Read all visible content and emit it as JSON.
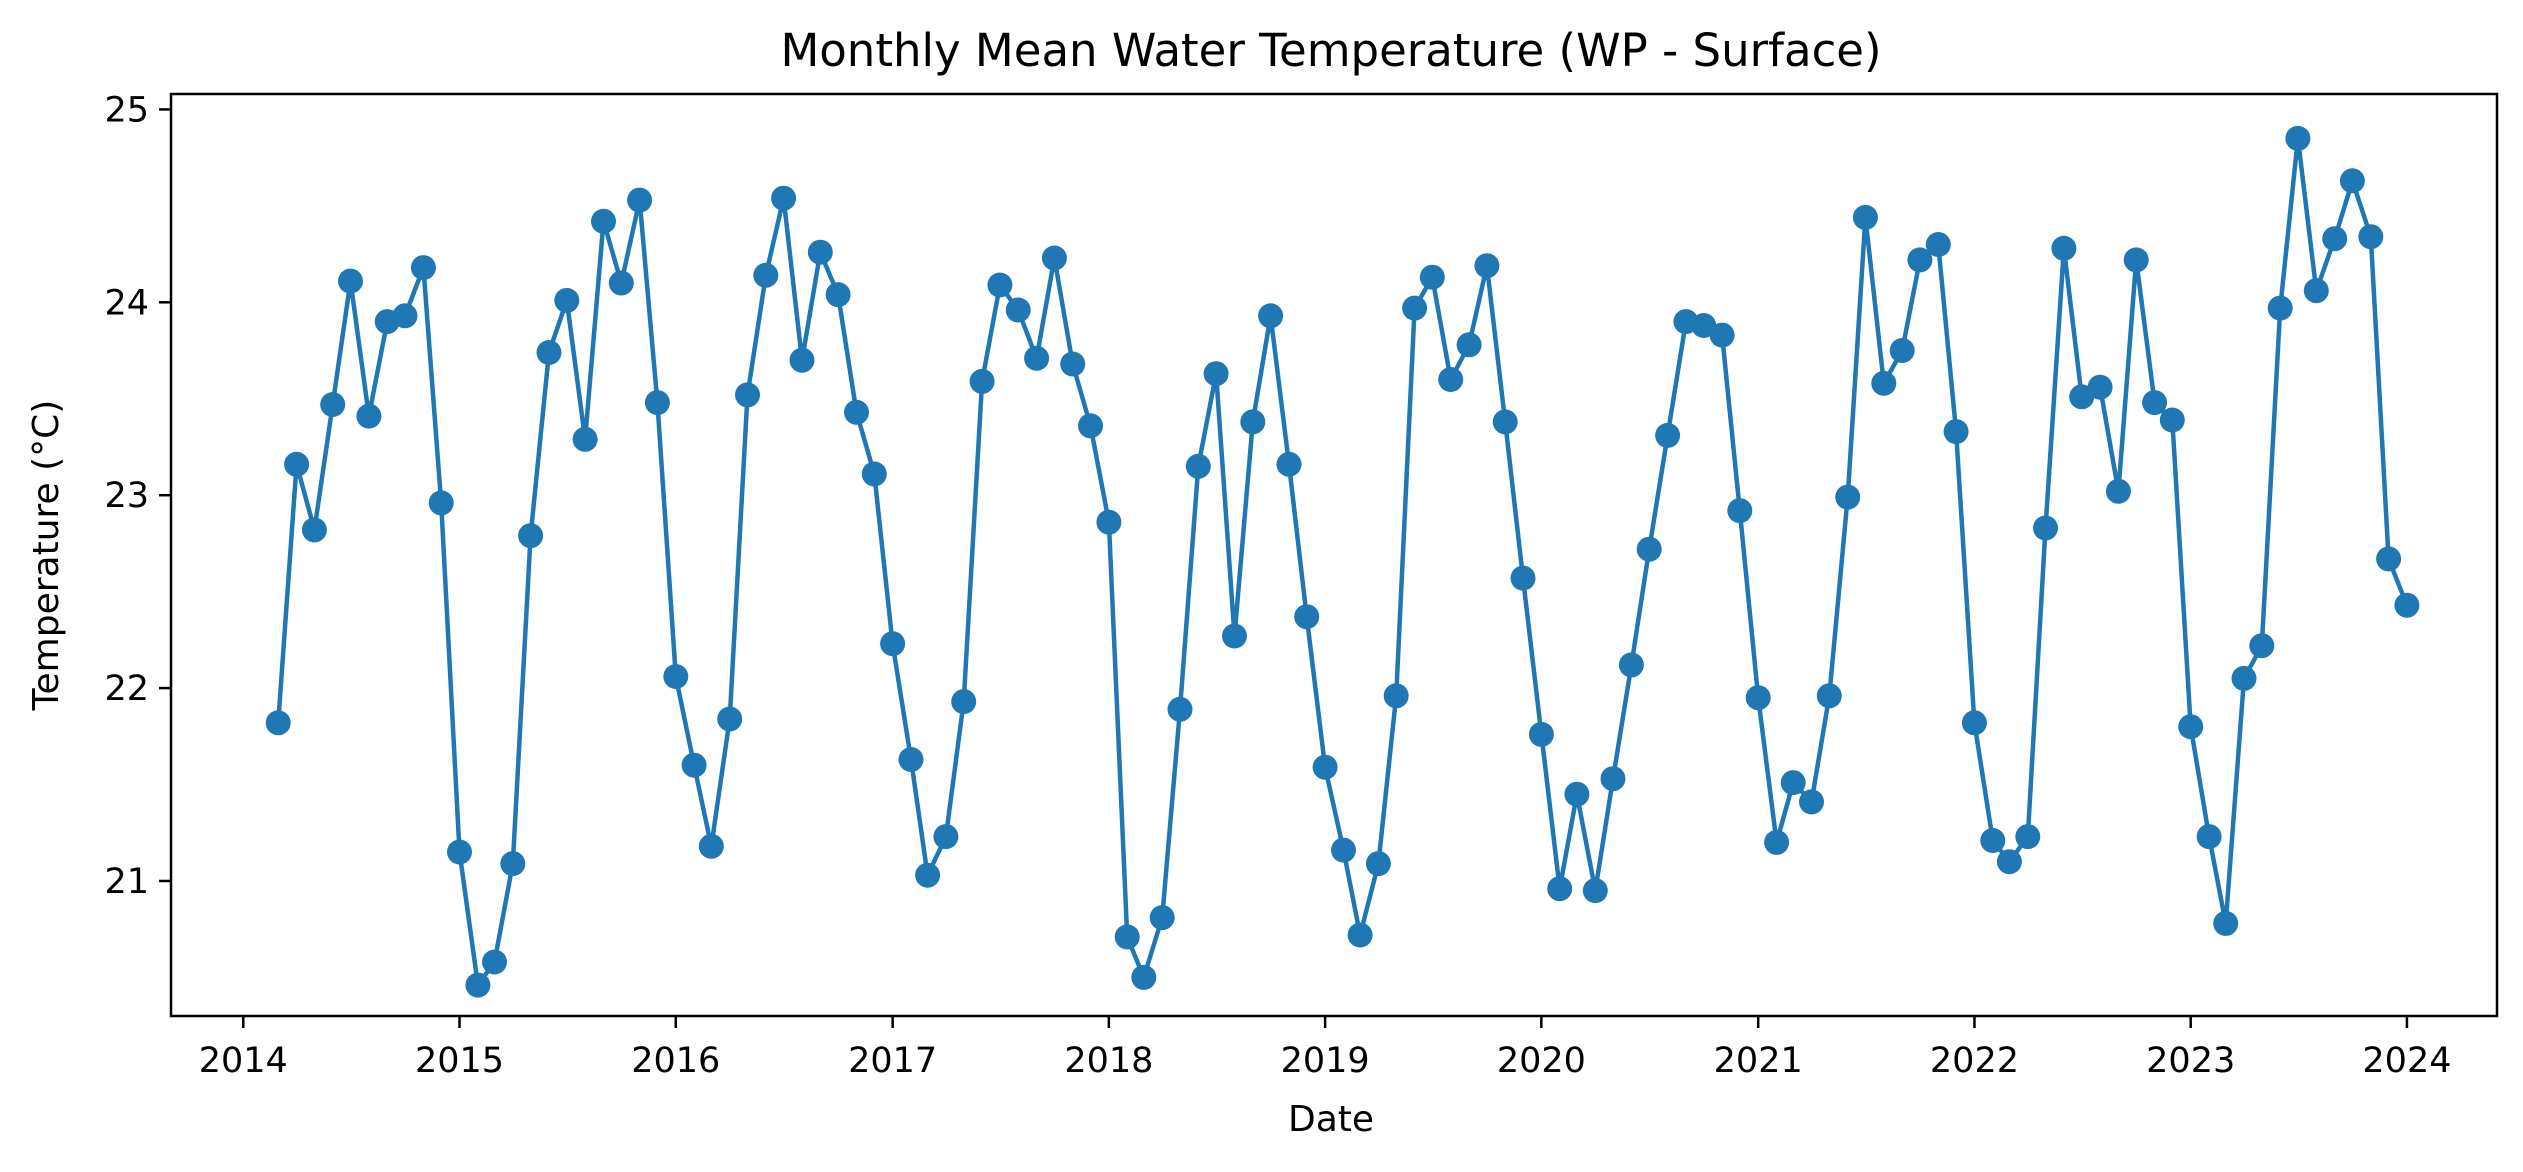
{
  "chart_data": {
    "type": "line",
    "title": "Monthly Mean Water Temperature (WP - Surface)",
    "xlabel": "Date",
    "ylabel": "Temperature (°C)",
    "xlim": [
      "2013-09-01",
      "2024-06-01"
    ],
    "ylim": [
      20.3,
      25.08
    ],
    "x_ticks": [
      "2014",
      "2015",
      "2016",
      "2017",
      "2018",
      "2019",
      "2020",
      "2021",
      "2022",
      "2023",
      "2024"
    ],
    "y_ticks": [
      "21",
      "22",
      "23",
      "24",
      "25"
    ],
    "grid": false,
    "legend": "none",
    "color": "#1f77b4",
    "marker": "circle",
    "series": [
      {
        "x": [
          "2014-03",
          "2014-04",
          "2014-05",
          "2014-06",
          "2014-07",
          "2014-08",
          "2014-09",
          "2014-10",
          "2014-11",
          "2014-12",
          "2015-01",
          "2015-02",
          "2015-03",
          "2015-04",
          "2015-05",
          "2015-06",
          "2015-07",
          "2015-08",
          "2015-09",
          "2015-10",
          "2015-11",
          "2015-12",
          "2016-01",
          "2016-02",
          "2016-03",
          "2016-04",
          "2016-05",
          "2016-06",
          "2016-07",
          "2016-08",
          "2016-09",
          "2016-10",
          "2016-11",
          "2016-12",
          "2017-01",
          "2017-02",
          "2017-03",
          "2017-04",
          "2017-05",
          "2017-06",
          "2017-07",
          "2017-08",
          "2017-09",
          "2017-10",
          "2017-11",
          "2017-12",
          "2018-01",
          "2018-02",
          "2018-03",
          "2018-04",
          "2018-05",
          "2018-06",
          "2018-07",
          "2018-08",
          "2018-09",
          "2018-10",
          "2018-11",
          "2018-12",
          "2019-01",
          "2019-02",
          "2019-03",
          "2019-04",
          "2019-05",
          "2019-06",
          "2019-07",
          "2019-08",
          "2019-09",
          "2019-10",
          "2019-11",
          "2019-12",
          "2020-01",
          "2020-02",
          "2020-03",
          "2020-04",
          "2020-05",
          "2020-06",
          "2020-07",
          "2020-08",
          "2020-09",
          "2020-10",
          "2020-11",
          "2020-12",
          "2021-01",
          "2021-02",
          "2021-03",
          "2021-04",
          "2021-05",
          "2021-06",
          "2021-07",
          "2021-08",
          "2021-09",
          "2021-10",
          "2021-11",
          "2021-12",
          "2022-01",
          "2022-02",
          "2022-03",
          "2022-04",
          "2022-05",
          "2022-06",
          "2022-07",
          "2022-08",
          "2022-09",
          "2022-10",
          "2022-11",
          "2022-12",
          "2023-01",
          "2023-02",
          "2023-03",
          "2023-04",
          "2023-05",
          "2023-06",
          "2023-07",
          "2023-08",
          "2023-09",
          "2023-10",
          "2023-11",
          "2023-12",
          "2024-01"
        ],
        "values": [
          21.82,
          23.16,
          22.82,
          23.47,
          24.11,
          23.41,
          23.9,
          23.93,
          24.18,
          22.96,
          21.15,
          20.46,
          20.58,
          21.09,
          22.79,
          23.74,
          24.01,
          23.29,
          24.42,
          24.1,
          24.53,
          23.48,
          22.06,
          21.6,
          21.18,
          21.84,
          23.52,
          24.14,
          24.54,
          23.7,
          24.26,
          24.04,
          23.43,
          23.11,
          22.23,
          21.63,
          21.03,
          21.23,
          21.93,
          23.59,
          24.09,
          23.96,
          23.71,
          24.23,
          23.68,
          23.36,
          22.86,
          20.71,
          20.5,
          20.81,
          21.89,
          23.15,
          23.63,
          22.27,
          23.38,
          23.93,
          23.16,
          22.37,
          21.59,
          21.16,
          20.72,
          21.09,
          21.96,
          23.97,
          24.13,
          23.6,
          23.78,
          24.19,
          23.38,
          22.57,
          21.76,
          20.96,
          21.45,
          20.95,
          21.53,
          22.12,
          22.72,
          23.31,
          23.9,
          23.88,
          23.83,
          22.92,
          21.95,
          21.2,
          21.51,
          21.41,
          21.96,
          22.99,
          24.44,
          23.58,
          23.75,
          24.22,
          24.3,
          23.33,
          21.82,
          21.21,
          21.1,
          21.23,
          22.83,
          24.28,
          23.51,
          23.56,
          23.02,
          24.22,
          23.48,
          23.39,
          21.8,
          21.23,
          20.78,
          22.05,
          22.22,
          23.97,
          24.85,
          24.06,
          24.33,
          24.63,
          24.34,
          22.67,
          22.43
        ]
      }
    ]
  }
}
